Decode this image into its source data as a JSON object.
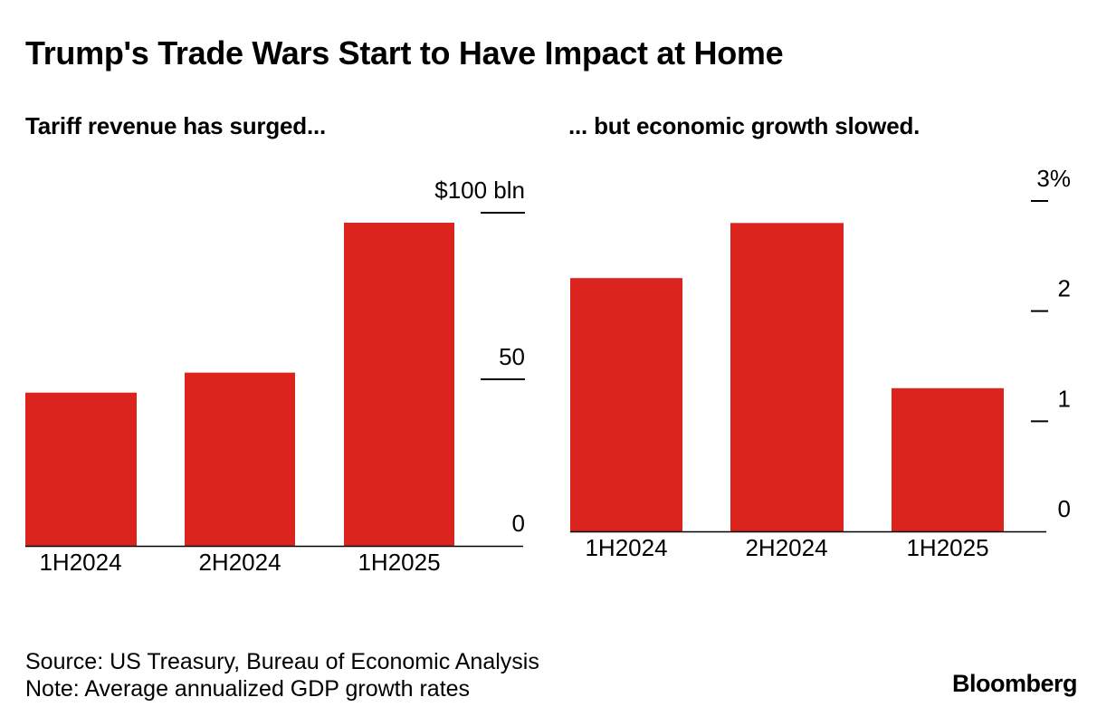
{
  "title": "Trump's Trade Wars Start to Have Impact at Home",
  "colors": {
    "bar": "#dc241f",
    "text": "#000000",
    "background": "#ffffff"
  },
  "chart_data": [
    {
      "type": "bar",
      "title": "Tariff revenue has surged...",
      "categories": [
        "1H2024",
        "2H2024",
        "1H2025"
      ],
      "values": [
        46,
        52,
        97
      ],
      "ylim": [
        0,
        100
      ],
      "yticks": [
        {
          "value": 0,
          "label": "0"
        },
        {
          "value": 50,
          "label": "50"
        },
        {
          "value": 100,
          "label": "$100 bln"
        }
      ],
      "grid": false
    },
    {
      "type": "bar",
      "title": "... but economic growth slowed.",
      "categories": [
        "1H2024",
        "2H2024",
        "1H2025"
      ],
      "values": [
        2.3,
        2.8,
        1.3
      ],
      "ylim": [
        0,
        3
      ],
      "yticks": [
        {
          "value": 0,
          "label": "0"
        },
        {
          "value": 1,
          "label": "1"
        },
        {
          "value": 2,
          "label": "2"
        },
        {
          "value": 3,
          "label": "3%"
        }
      ],
      "grid": false
    }
  ],
  "footer": {
    "source": "Source: US Treasury, Bureau of Economic Analysis",
    "note": "Note: Average annualized GDP growth rates",
    "brand": "Bloomberg"
  }
}
